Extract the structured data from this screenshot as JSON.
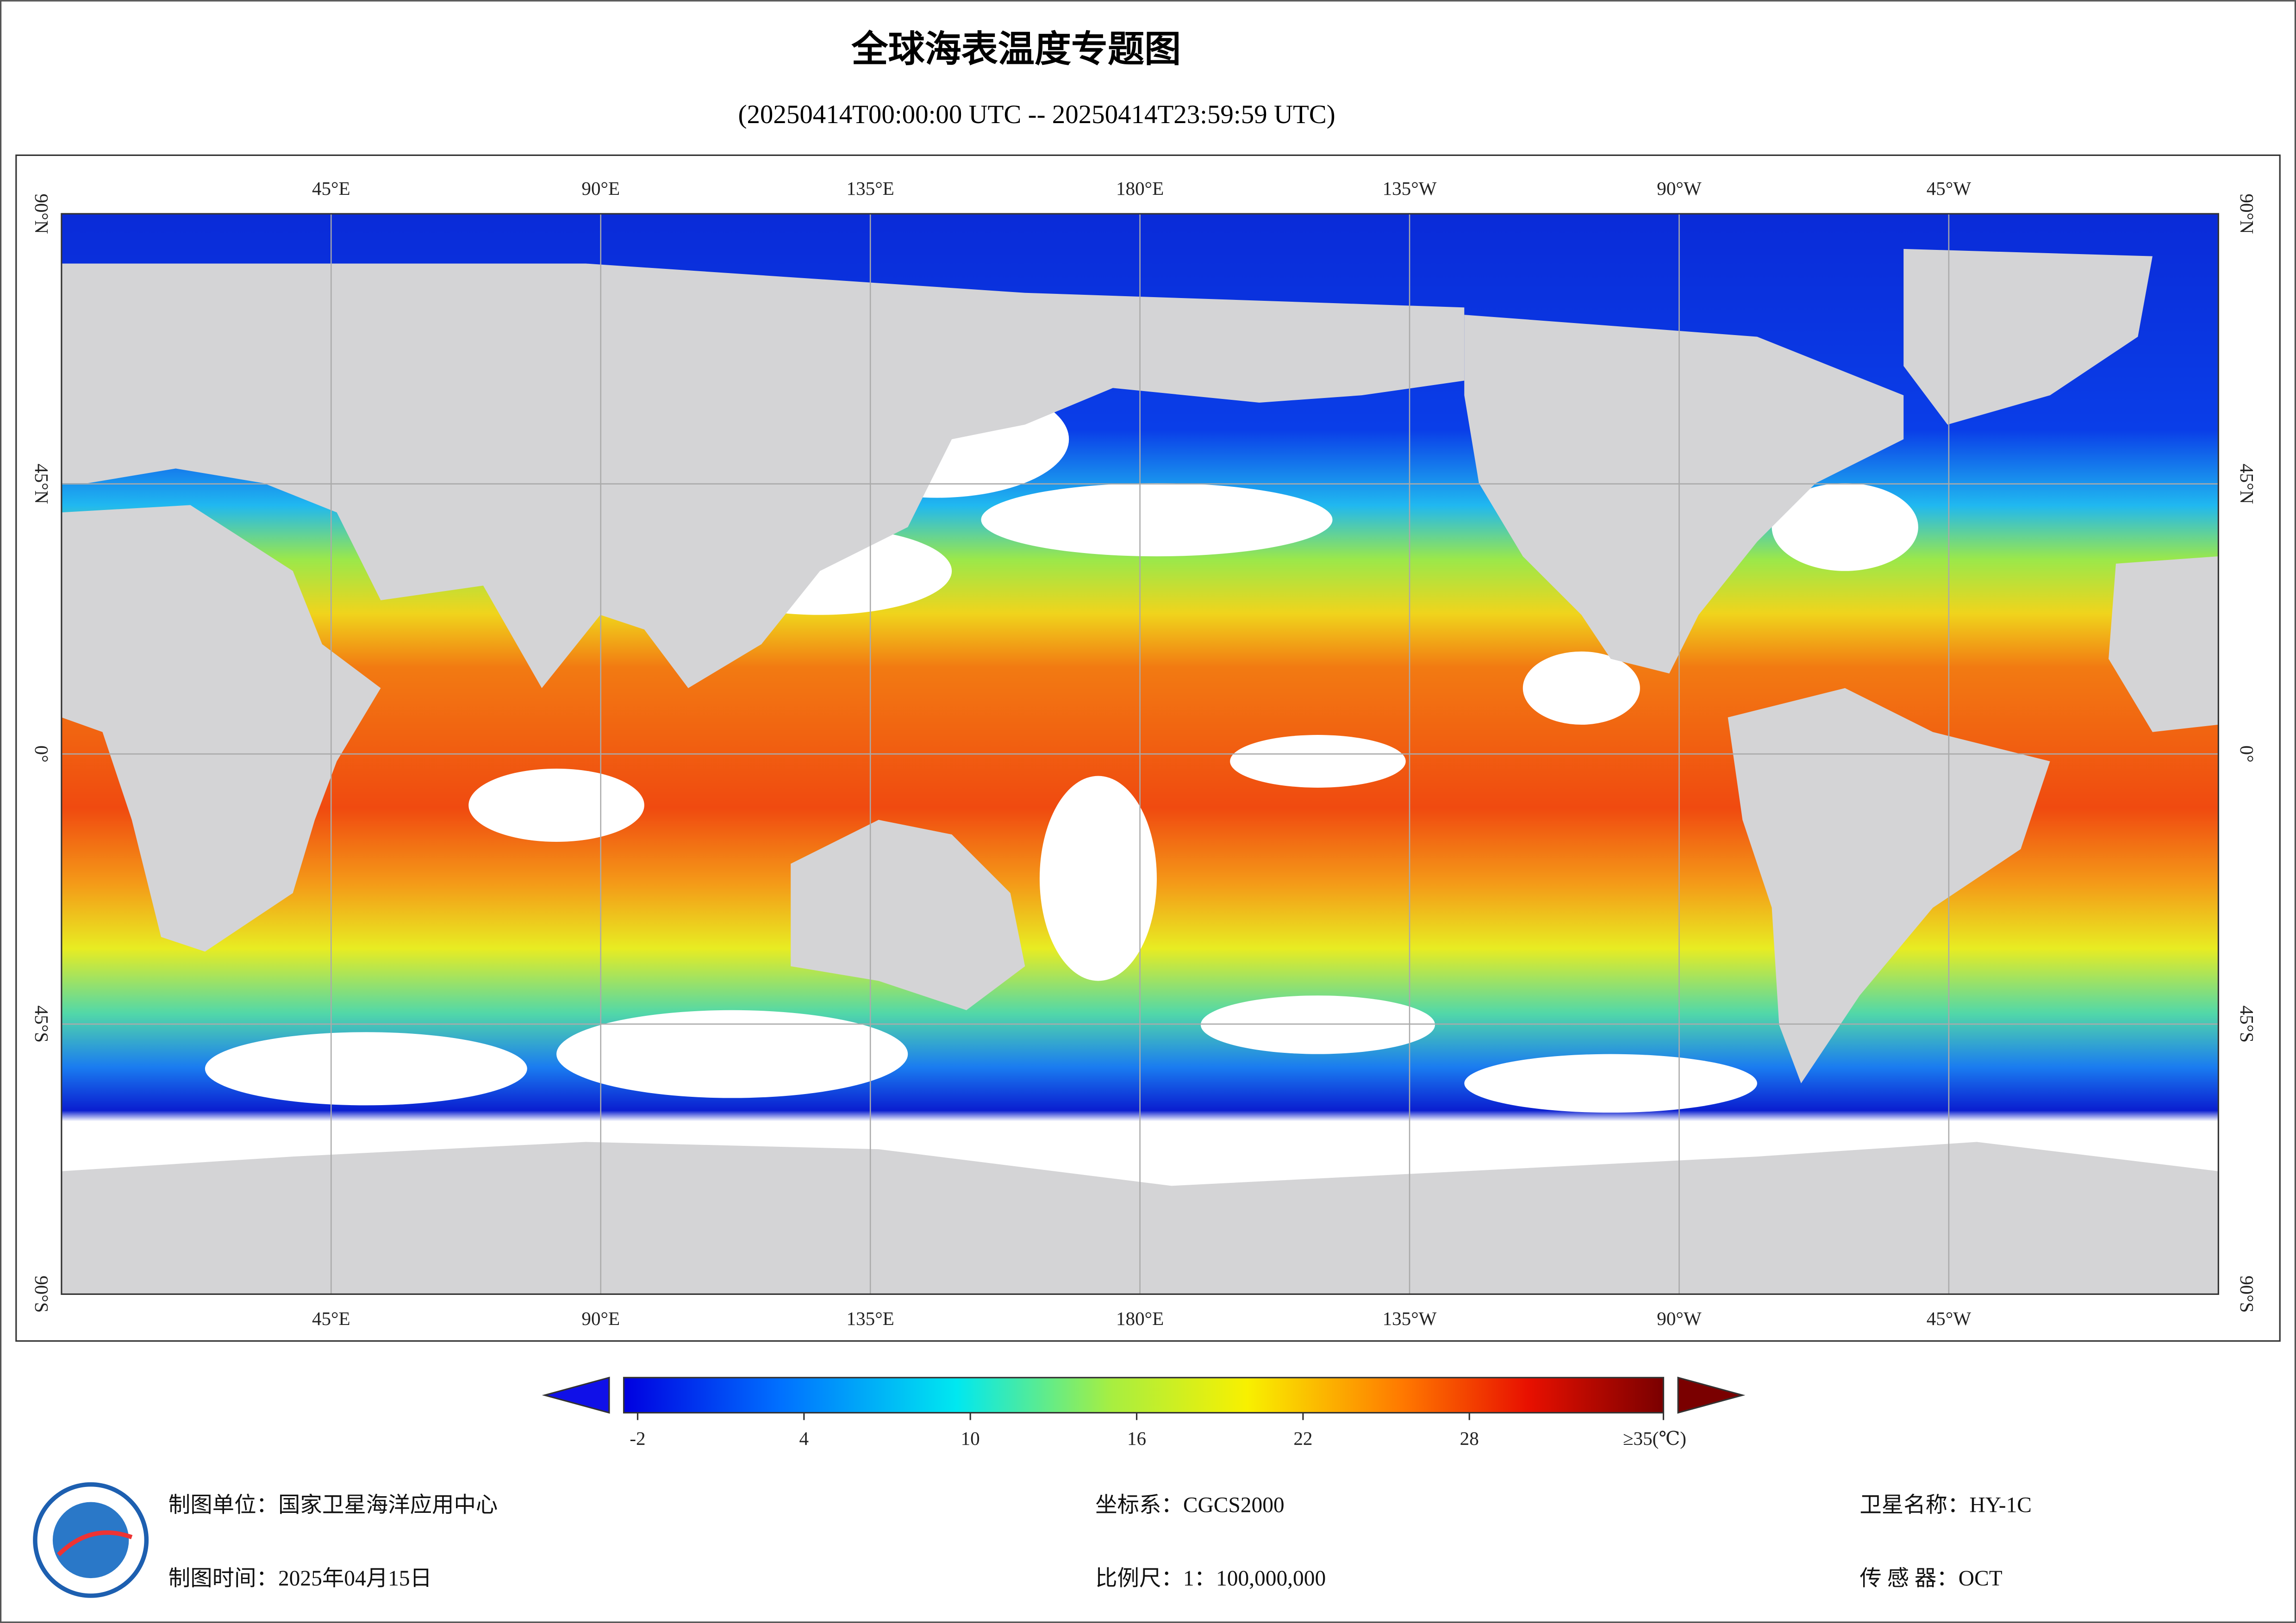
{
  "title": "全球海表温度专题图",
  "subtitle": "(20250414T00:00:00 UTC -- 20250414T23:59:59 UTC)",
  "map": {
    "xlim": [
      0,
      360
    ],
    "ylim": [
      -90,
      90
    ],
    "lon_ticks": [
      {
        "value": 45,
        "label": "45°E"
      },
      {
        "value": 90,
        "label": "90°E"
      },
      {
        "value": 135,
        "label": "135°E"
      },
      {
        "value": 180,
        "label": "180°E"
      },
      {
        "value": 225,
        "label": "135°W"
      },
      {
        "value": 270,
        "label": "90°W"
      },
      {
        "value": 315,
        "label": "45°W"
      }
    ],
    "lat_ticks": [
      {
        "value": 90,
        "label": "90°N"
      },
      {
        "value": 45,
        "label": "45°N"
      },
      {
        "value": 0,
        "label": "0°"
      },
      {
        "value": -45,
        "label": "45°S"
      },
      {
        "value": -90,
        "label": "90°S"
      }
    ],
    "grid": true
  },
  "colorbar": {
    "clim": [
      -2.5,
      35
    ],
    "ticks": [
      -2,
      4,
      10,
      16,
      22,
      28,
      {
        "value": 35,
        "label": "≥35(℃)"
      }
    ]
  },
  "footer": {
    "org": "制图单位：国家卫星海洋应用中心",
    "crs": "坐标系：CGCS2000",
    "satellite": "卫星名称：HY-1C",
    "date": "制图时间：2025年04月15日",
    "scale": "比例尺：1：100,000,000",
    "sensor": "传 感 器：OCT"
  }
}
